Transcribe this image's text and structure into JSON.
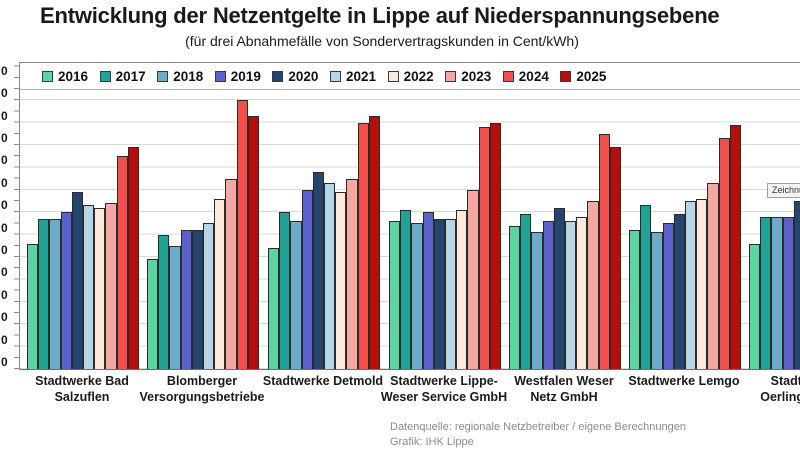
{
  "header": {
    "title": "Entwicklung der Netzentgelte in Lippe auf Niederspannungsebene",
    "subtitle": "(für drei Abnahmefälle von Sondervertragskunden in Cent/kWh)"
  },
  "chart_data": {
    "type": "bar",
    "title": "Entwicklung der Netzentgelte in Lippe auf Niederspannungsebene",
    "subtitle": "(für drei Abnahmefälle von Sondervertragskunden in Cent/kWh)",
    "unit": "Cent/kWh",
    "legend_position": "top",
    "grid": true,
    "y_axis": {
      "labels_clipped_at_left_edge": true,
      "visible_label_fragment": "0",
      "visible_label_count": 14,
      "estimated_major_step": 0.5,
      "ylim": [
        0,
        6.8
      ]
    },
    "categories": [
      "Stadtwerke Bad Salzuflen",
      "Blomberger Versorgungsbetriebe",
      "Stadtwerke Detmold",
      "Stadtwerke Lippe-Weser Service GmbH",
      "Westfalen Weser Netz GmbH",
      "Stadtwerke Lemgo",
      "Stadtwerke Oerlinghausen"
    ],
    "category_label_lines": [
      [
        "Stadtwerke Bad",
        "Salzuflen"
      ],
      [
        "Blomberger",
        "Versorgungsbetriebe"
      ],
      [
        "Stadtwerke Detmold"
      ],
      [
        "Stadtwerke Lippe-",
        "Weser Service GmbH"
      ],
      [
        "Westfalen Weser",
        "Netz GmbH"
      ],
      [
        "Stadtwerke Lemgo"
      ],
      [
        "Stadtwerke",
        "Oerlinghausen"
      ]
    ],
    "series": [
      {
        "name": "2016",
        "color": "#5BD4A2",
        "values": [
          2.8,
          2.45,
          2.7,
          3.3,
          3.2,
          3.1,
          2.8
        ]
      },
      {
        "name": "2017",
        "color": "#21A294",
        "values": [
          3.35,
          3.0,
          3.5,
          3.55,
          3.45,
          3.65,
          3.4
        ]
      },
      {
        "name": "2018",
        "color": "#6CACC9",
        "values": [
          3.35,
          2.75,
          3.3,
          3.25,
          3.05,
          3.05,
          3.4
        ]
      },
      {
        "name": "2019",
        "color": "#5A60CE",
        "values": [
          3.5,
          3.1,
          4.0,
          3.5,
          3.3,
          3.25,
          3.4
        ]
      },
      {
        "name": "2020",
        "color": "#24466E",
        "values": [
          3.95,
          3.1,
          4.4,
          3.35,
          3.6,
          3.45,
          3.75
        ]
      },
      {
        "name": "2021",
        "color": "#B6D6E8",
        "values": [
          3.65,
          3.25,
          4.15,
          3.35,
          3.3,
          3.75,
          null
        ]
      },
      {
        "name": "2022",
        "color": "#FBE9DC",
        "values": [
          3.6,
          3.8,
          3.95,
          3.55,
          3.4,
          3.8,
          null
        ]
      },
      {
        "name": "2023",
        "color": "#F5A7A2",
        "values": [
          3.7,
          4.25,
          4.25,
          4.0,
          3.75,
          4.15,
          null
        ]
      },
      {
        "name": "2024",
        "color": "#F24E4B",
        "values": [
          4.75,
          6.0,
          5.5,
          5.4,
          5.25,
          5.15,
          null
        ]
      },
      {
        "name": "2025",
        "color": "#B50E0B",
        "values": [
          4.95,
          5.65,
          5.65,
          5.5,
          4.95,
          5.45,
          null
        ]
      }
    ],
    "note": "values estimated from gridlines; y-axis labels cropped off the left edge of the screenshot, only trailing zeros visible"
  },
  "overlay": {
    "tooltip_text": "Zeichnungsfläche"
  },
  "footer": {
    "source": "Datenquelle: regionale Netzbetreiber / eigene Berechnungen",
    "credit": "Grafik: IHK Lippe"
  }
}
